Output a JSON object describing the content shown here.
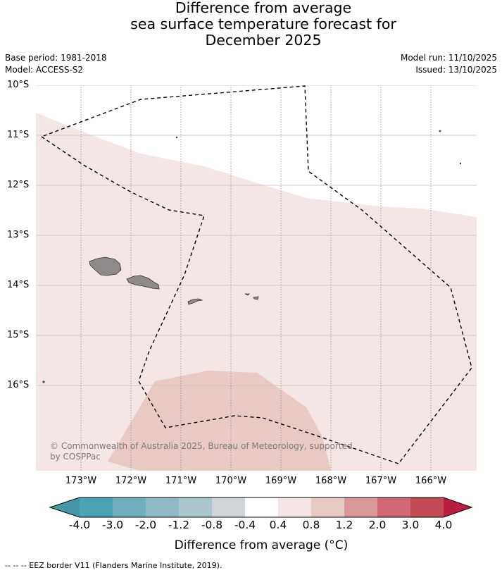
{
  "title": {
    "line1": "Difference from average",
    "line2": "sea surface temperature forecast for",
    "line3": "December 2025"
  },
  "meta": {
    "base_period": "Base period: 1981-2018",
    "model": "Model: ACCESS-S2",
    "model_run": "Model run: 11/10/2025",
    "issued": "Issued: 13/10/2025"
  },
  "map": {
    "latitudes": [
      "10°S",
      "11°S",
      "12°S",
      "13°S",
      "14°S",
      "15°S",
      "16°S"
    ],
    "longitudes": [
      "173°W",
      "172°W",
      "171°W",
      "170°W",
      "169°W",
      "168°W",
      "167°W",
      "166°W"
    ],
    "anomaly_zones": [
      {
        "band": "0.4 to 0.8",
        "color": "#f4e6e4"
      },
      {
        "band": "0.8 to 1.2",
        "color": "#e8c9c4"
      }
    ],
    "copyright": "© Commonwealth of Australia 2025, Bureau of Meteorology, supported by COSPPac"
  },
  "colorbar": {
    "colors": [
      "#4596a6",
      "#4aa3b4",
      "#6fafbf",
      "#8db8c4",
      "#a9c6cb",
      "#d0d6d8",
      "#ffffff",
      "#f4e6e4",
      "#e8c9c4",
      "#da969a",
      "#cd6874",
      "#c14a57",
      "#b71f3d"
    ],
    "labels": [
      "-4.0",
      "-3.0",
      "-2.0",
      "-1.2",
      "-0.8",
      "-0.4",
      "0.4",
      "0.8",
      "1.2",
      "2.0",
      "3.0",
      "4.0"
    ],
    "title": "Difference from average (°C)"
  },
  "legend": {
    "eez": "--  --  -- EEZ border V11 (Flanders Marine Institute, 2019)."
  }
}
